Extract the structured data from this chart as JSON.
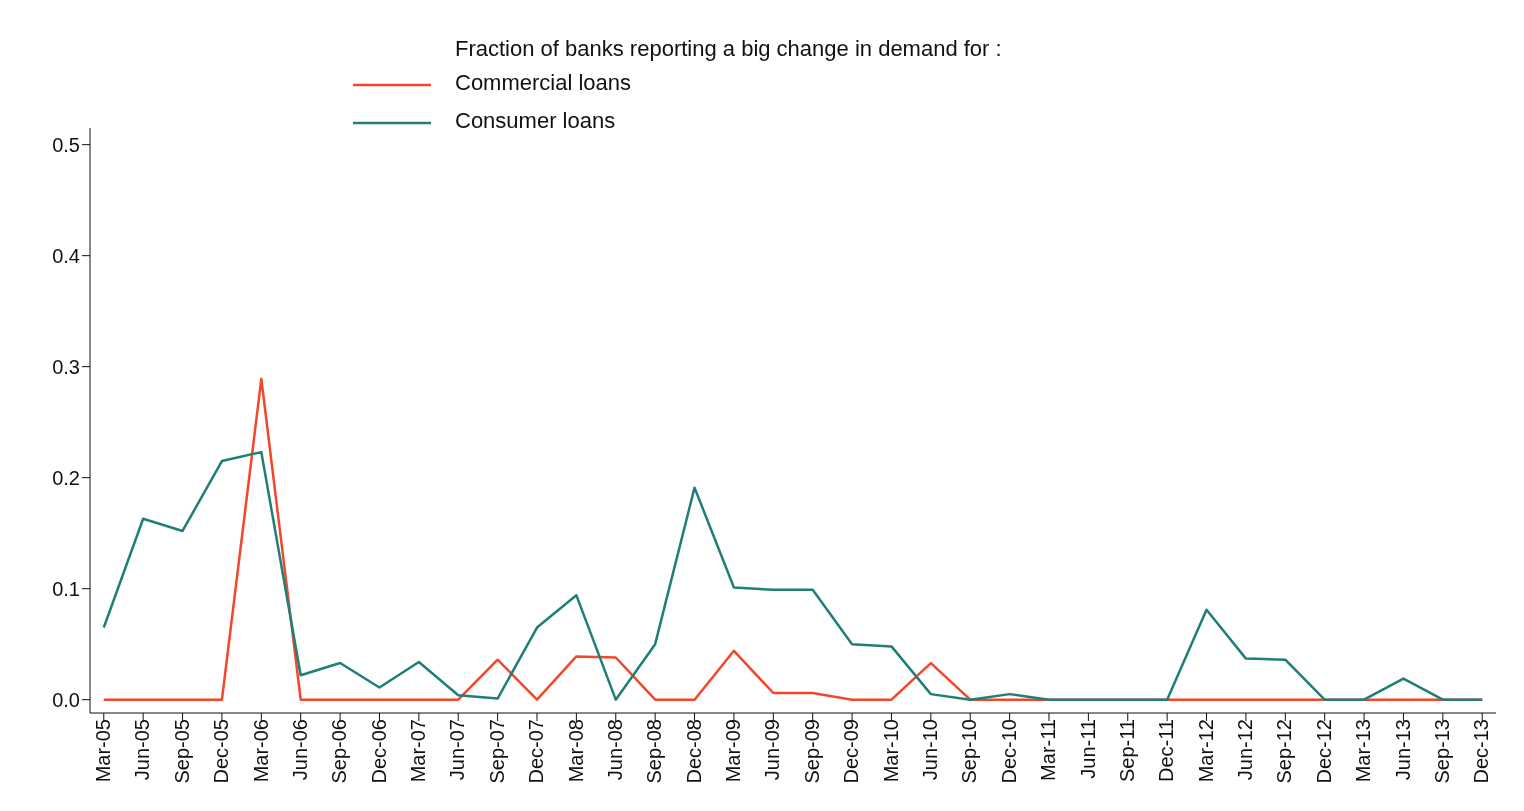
{
  "chart_data": {
    "type": "line",
    "legend_title": "Fraction of banks reporting a big change in demand for :",
    "categories": [
      "Mar-05",
      "Jun-05",
      "Sep-05",
      "Dec-05",
      "Mar-06",
      "Jun-06",
      "Sep-06",
      "Dec-06",
      "Mar-07",
      "Jun-07",
      "Sep-07",
      "Dec-07",
      "Mar-08",
      "Jun-08",
      "Sep-08",
      "Dec-08",
      "Mar-09",
      "Jun-09",
      "Sep-09",
      "Dec-09",
      "Mar-10",
      "Jun-10",
      "Sep-10",
      "Dec-10",
      "Mar-11",
      "Jun-11",
      "Sep-11",
      "Dec-11",
      "Mar-12",
      "Jun-12",
      "Sep-12",
      "Dec-12",
      "Mar-13",
      "Jun-13",
      "Sep-13",
      "Dec-13"
    ],
    "series": [
      {
        "name": "Commercial loans",
        "color": "#f4472a",
        "values": [
          0,
          0,
          0,
          0,
          0.289,
          0,
          0,
          0,
          0,
          0,
          0.036,
          0,
          0.039,
          0.038,
          0,
          0,
          0.044,
          0.006,
          0.006,
          0,
          0,
          0.033,
          0,
          0,
          0,
          0,
          0,
          0,
          0,
          0,
          0,
          0,
          0,
          0,
          0,
          0
        ]
      },
      {
        "name": "Consumer loans",
        "color": "#1f7f78",
        "values": [
          0.065,
          0.163,
          0.152,
          0.215,
          0.223,
          0.022,
          0.033,
          0.011,
          0.034,
          0.004,
          0.001,
          0.065,
          0.094,
          0,
          0.05,
          0.191,
          0.101,
          0.099,
          0.099,
          0.05,
          0.048,
          0.005,
          0,
          0.005,
          0,
          0,
          0,
          0,
          0.081,
          0.037,
          0.036,
          0,
          0,
          0.019,
          0,
          0
        ]
      }
    ],
    "ylim": [
      -0.012,
      0.515
    ],
    "yticks": [
      {
        "value": 0,
        "label": "0.0"
      },
      {
        "value": 0.1,
        "label": "0.1"
      },
      {
        "value": 0.2,
        "label": "0.2"
      },
      {
        "value": 0.3,
        "label": "0.3"
      },
      {
        "value": 0.4,
        "label": "0.4"
      },
      {
        "value": 0.5,
        "label": "0.5"
      }
    ],
    "grid": false,
    "legend": "top",
    "marker": "none",
    "line_style": "solid"
  }
}
